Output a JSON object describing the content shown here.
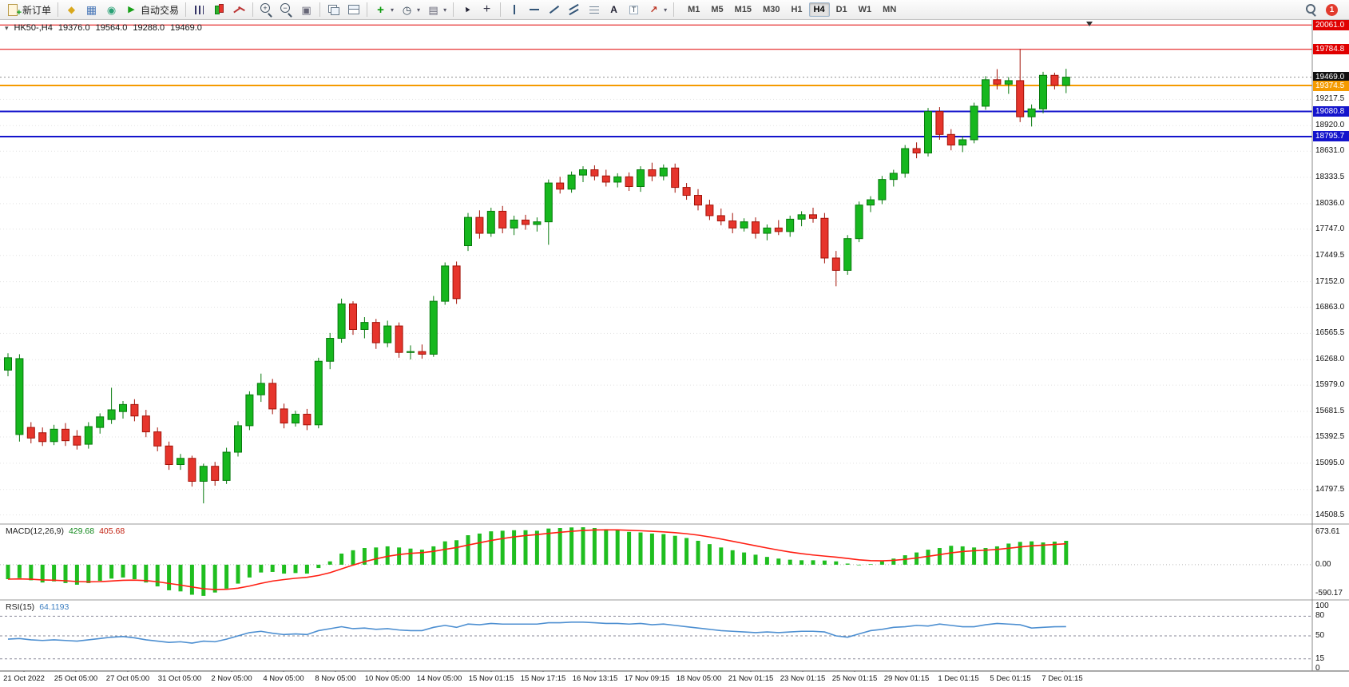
{
  "toolbar": {
    "buttons": [
      {
        "name": "new-order",
        "icon": "doc-plus",
        "label": "新订单"
      },
      {
        "divider": true
      },
      {
        "name": "market-watch",
        "icon": "gold-diamond"
      },
      {
        "name": "data-window",
        "icon": "blue-table"
      },
      {
        "name": "navigator",
        "icon": "green-globe"
      },
      {
        "name": "autotrading",
        "icon": "play",
        "label": "自动交易"
      },
      {
        "divider": true
      },
      {
        "name": "bar-chart",
        "icon": "bars"
      },
      {
        "name": "candlestick-chart",
        "icon": "candles"
      },
      {
        "name": "line-chart",
        "icon": "linechart"
      },
      {
        "divider": true
      },
      {
        "name": "zoom-in",
        "icon": "zoom-in"
      },
      {
        "name": "zoom-out",
        "icon": "zoom-out"
      },
      {
        "name": "tile-windows",
        "icon": "tiles"
      },
      {
        "divider": true
      },
      {
        "name": "cascade-windows",
        "icon": "cascade"
      },
      {
        "name": "arrange-windows",
        "icon": "cascade2"
      },
      {
        "divider": true
      },
      {
        "name": "indicators",
        "icon": "ind-plus",
        "dropdown": true
      },
      {
        "name": "periods",
        "icon": "clock",
        "dropdown": true
      },
      {
        "name": "templates",
        "icon": "template",
        "dropdown": true
      },
      {
        "divider": true
      },
      {
        "name": "cursor",
        "icon": "cursor"
      },
      {
        "name": "crosshair",
        "icon": "crosshair"
      },
      {
        "divider": true
      },
      {
        "name": "vertical-line",
        "icon": "vline"
      },
      {
        "name": "horizontal-line",
        "icon": "hline"
      },
      {
        "name": "trendline",
        "icon": "tline"
      },
      {
        "name": "equidistant-channel",
        "icon": "channel"
      },
      {
        "name": "fibonacci-retracement",
        "icon": "fibo"
      },
      {
        "name": "text",
        "icon": "text-a"
      },
      {
        "name": "text-label",
        "icon": "text-label"
      },
      {
        "name": "arrow-objects",
        "icon": "arrow",
        "dropdown": true
      },
      {
        "divider": true
      }
    ],
    "timeframes": [
      {
        "label": "M1",
        "active": false
      },
      {
        "label": "M5",
        "active": false
      },
      {
        "label": "M15",
        "active": false
      },
      {
        "label": "M30",
        "active": false
      },
      {
        "label": "H1",
        "active": false
      },
      {
        "label": "H4",
        "active": true
      },
      {
        "label": "D1",
        "active": false
      },
      {
        "label": "W1",
        "active": false
      },
      {
        "label": "MN",
        "active": false
      }
    ],
    "notification_count": "1"
  },
  "chart": {
    "title": {
      "symbol": "HK50-,H4",
      "open": "19376.0",
      "high": "19564.0",
      "low": "19288.0",
      "close": "19469.0"
    }
  },
  "indicators": {
    "macd": {
      "label": "MACD(12,26,9)",
      "value_main": "429.68",
      "value_signal": "405.68",
      "axis_max": "673.61",
      "axis_zero": "0.00",
      "axis_min": "-590.17"
    },
    "rsi": {
      "label": "RSI(15)",
      "value": "64.1193",
      "axis_labels": [
        "100",
        "80",
        "50",
        "15",
        "0"
      ]
    }
  },
  "chart_data": {
    "type": "candlestick",
    "symbol": "HK50-",
    "timeframe": "H4",
    "price_range": {
      "min": 14460,
      "max": 20090
    },
    "grid": true,
    "ohlc": [
      [
        16150,
        16340,
        16080,
        16290
      ],
      [
        15420,
        16330,
        15340,
        16280
      ],
      [
        15500,
        15560,
        15320,
        15380
      ],
      [
        15440,
        15500,
        15290,
        15340
      ],
      [
        15340,
        15530,
        15300,
        15480
      ],
      [
        15480,
        15550,
        15290,
        15350
      ],
      [
        15400,
        15470,
        15250,
        15300
      ],
      [
        15310,
        15560,
        15260,
        15510
      ],
      [
        15500,
        15660,
        15430,
        15620
      ],
      [
        15590,
        15950,
        15540,
        15700
      ],
      [
        15680,
        15800,
        15600,
        15760
      ],
      [
        15760,
        15820,
        15570,
        15630
      ],
      [
        15630,
        15700,
        15390,
        15450
      ],
      [
        15450,
        15500,
        15230,
        15290
      ],
      [
        15290,
        15340,
        15020,
        15080
      ],
      [
        15080,
        15200,
        15020,
        15150
      ],
      [
        15150,
        15180,
        14830,
        14890
      ],
      [
        14890,
        15090,
        14640,
        15060
      ],
      [
        15060,
        15110,
        14840,
        14900
      ],
      [
        14900,
        15270,
        14860,
        15220
      ],
      [
        15220,
        15570,
        15170,
        15520
      ],
      [
        15520,
        15910,
        15470,
        15870
      ],
      [
        15870,
        16110,
        15790,
        16000
      ],
      [
        16000,
        16050,
        15650,
        15710
      ],
      [
        15710,
        15770,
        15490,
        15550
      ],
      [
        15550,
        15690,
        15510,
        15650
      ],
      [
        15650,
        15710,
        15470,
        15530
      ],
      [
        15530,
        16290,
        15490,
        16250
      ],
      [
        16250,
        16570,
        16160,
        16510
      ],
      [
        16510,
        16960,
        16460,
        16900
      ],
      [
        16900,
        16930,
        16550,
        16610
      ],
      [
        16610,
        16750,
        16510,
        16690
      ],
      [
        16690,
        16730,
        16390,
        16460
      ],
      [
        16460,
        16710,
        16410,
        16650
      ],
      [
        16650,
        16690,
        16290,
        16350
      ],
      [
        16350,
        16430,
        16270,
        16360
      ],
      [
        16360,
        16440,
        16280,
        16330
      ],
      [
        16330,
        16990,
        16300,
        16930
      ],
      [
        16930,
        17370,
        16890,
        17330
      ],
      [
        17330,
        17380,
        16900,
        16960
      ],
      [
        17560,
        17930,
        17500,
        17880
      ],
      [
        17880,
        17960,
        17640,
        17700
      ],
      [
        17700,
        17990,
        17660,
        17950
      ],
      [
        17950,
        18010,
        17700,
        17760
      ],
      [
        17760,
        17900,
        17680,
        17850
      ],
      [
        17850,
        17910,
        17740,
        17800
      ],
      [
        17800,
        17880,
        17720,
        17830
      ],
      [
        17830,
        18310,
        17570,
        18270
      ],
      [
        18270,
        18340,
        18150,
        18200
      ],
      [
        18200,
        18400,
        18160,
        18360
      ],
      [
        18360,
        18460,
        18280,
        18420
      ],
      [
        18420,
        18470,
        18300,
        18350
      ],
      [
        18350,
        18420,
        18230,
        18280
      ],
      [
        18280,
        18380,
        18220,
        18340
      ],
      [
        18340,
        18390,
        18180,
        18230
      ],
      [
        18230,
        18460,
        18170,
        18420
      ],
      [
        18420,
        18500,
        18290,
        18350
      ],
      [
        18350,
        18480,
        18300,
        18440
      ],
      [
        18440,
        18490,
        18160,
        18220
      ],
      [
        18220,
        18270,
        18080,
        18130
      ],
      [
        18130,
        18200,
        17960,
        18020
      ],
      [
        18020,
        18080,
        17850,
        17900
      ],
      [
        17900,
        17980,
        17790,
        17840
      ],
      [
        17840,
        17930,
        17700,
        17760
      ],
      [
        17760,
        17870,
        17720,
        17830
      ],
      [
        17830,
        17880,
        17640,
        17700
      ],
      [
        17700,
        17800,
        17620,
        17760
      ],
      [
        17760,
        17850,
        17680,
        17720
      ],
      [
        17720,
        17900,
        17660,
        17860
      ],
      [
        17860,
        17950,
        17780,
        17910
      ],
      [
        17910,
        17990,
        17820,
        17870
      ],
      [
        17870,
        17930,
        17360,
        17420
      ],
      [
        17420,
        17500,
        17100,
        17280
      ],
      [
        17280,
        17680,
        17230,
        17640
      ],
      [
        17640,
        18060,
        17600,
        18020
      ],
      [
        18020,
        18120,
        17940,
        18080
      ],
      [
        18080,
        18350,
        18030,
        18310
      ],
      [
        18310,
        18420,
        18230,
        18380
      ],
      [
        18380,
        18700,
        18330,
        18660
      ],
      [
        18660,
        18730,
        18550,
        18610
      ],
      [
        18610,
        19120,
        18570,
        19080
      ],
      [
        19080,
        19130,
        18760,
        18820
      ],
      [
        18820,
        18880,
        18640,
        18700
      ],
      [
        18700,
        18800,
        18620,
        18760
      ],
      [
        18760,
        19180,
        18720,
        19140
      ],
      [
        19140,
        19480,
        19100,
        19440
      ],
      [
        19440,
        19560,
        19330,
        19390
      ],
      [
        19390,
        19470,
        19280,
        19430
      ],
      [
        19430,
        19790,
        18960,
        19020
      ],
      [
        19020,
        19160,
        18910,
        19110
      ],
      [
        19110,
        19530,
        19060,
        19490
      ],
      [
        19490,
        19520,
        19330,
        19376
      ],
      [
        19376,
        19564,
        19288,
        19469
      ]
    ],
    "x_labels": [
      "21 Oct 2022",
      "25 Oct 05:00",
      "27 Oct 05:00",
      "31 Oct 05:00",
      "2 Nov 05:00",
      "4 Nov 05:00",
      "8 Nov 05:00",
      "10 Nov 05:00",
      "14 Nov 05:00",
      "15 Nov 01:15",
      "15 Nov 17:15",
      "16 Nov 13:15",
      "17 Nov 09:15",
      "18 Nov 05:00",
      "21 Nov 01:15",
      "23 Nov 01:15",
      "25 Nov 01:15",
      "29 Nov 01:15",
      "1 Dec 01:15",
      "5 Dec 01:15",
      "7 Dec 01:15"
    ],
    "y_tick_labels": [
      "19217.5",
      "18920.0",
      "18631.0",
      "18333.5",
      "18036.0",
      "17747.0",
      "17449.5",
      "17152.0",
      "16863.0",
      "16565.5",
      "16268.0",
      "15979.0",
      "15681.5",
      "15392.5",
      "15095.0",
      "14797.5",
      "14508.5"
    ],
    "hlines": [
      {
        "label": "20061.0",
        "price": 20061.0,
        "color": "#E00000",
        "width": 1,
        "style": "solid",
        "role": "resistance-line"
      },
      {
        "label": "19784.8",
        "price": 19784.8,
        "color": "#E00000",
        "width": 1,
        "style": "solid",
        "role": "resistance-line"
      },
      {
        "label": "19469.0",
        "price": 19469.0,
        "color": "#111111",
        "line_color": "#909090",
        "width": 1,
        "style": "dotted",
        "role": "bid-price-line"
      },
      {
        "label": "19374.5",
        "price": 19374.5,
        "color": "#F59B00",
        "width": 2,
        "style": "solid",
        "role": "support-line"
      },
      {
        "label": "19080.8",
        "price": 19080.8,
        "color": "#1414CC",
        "width": 2,
        "style": "solid",
        "role": "support-line"
      },
      {
        "label": "18795.7",
        "price": 18795.7,
        "color": "#1414CC",
        "width": 2,
        "style": "solid",
        "role": "support-line"
      }
    ],
    "macd": {
      "params": "12,26,9",
      "range": {
        "max": 673.61,
        "min": -590.17
      },
      "values": [
        -260,
        -240,
        -280,
        -320,
        -300,
        -330,
        -360,
        -330,
        -290,
        -250,
        -230,
        -260,
        -320,
        -390,
        -460,
        -480,
        -540,
        -560,
        -500,
        -430,
        -340,
        -230,
        -140,
        -130,
        -160,
        -150,
        -160,
        -60,
        60,
        200,
        260,
        300,
        310,
        330,
        310,
        290,
        270,
        330,
        420,
        440,
        530,
        560,
        600,
        610,
        620,
        620,
        610,
        650,
        660,
        670,
        673,
        660,
        640,
        620,
        590,
        580,
        560,
        550,
        520,
        480,
        430,
        370,
        310,
        260,
        220,
        180,
        140,
        110,
        90,
        80,
        80,
        75,
        60,
        20,
        -10,
        10,
        60,
        110,
        170,
        220,
        270,
        300,
        340,
        330,
        310,
        300,
        330,
        380,
        410,
        420,
        400,
        415,
        429.68
      ]
    },
    "rsi": {
      "period": 15,
      "range": {
        "max": 100,
        "min": 0
      },
      "levels": [
        80,
        50,
        15
      ],
      "values": [
        45,
        46,
        44,
        43,
        44,
        43,
        42,
        44,
        46,
        48,
        49,
        47,
        44,
        42,
        40,
        41,
        39,
        42,
        41,
        45,
        50,
        55,
        57,
        54,
        52,
        53,
        52,
        58,
        61,
        64,
        61,
        62,
        60,
        61,
        59,
        58,
        58,
        63,
        66,
        63,
        68,
        67,
        69,
        68,
        68,
        68,
        68,
        70,
        70,
        71,
        71,
        70,
        69,
        69,
        68,
        69,
        67,
        68,
        66,
        64,
        62,
        60,
        58,
        57,
        56,
        55,
        56,
        55,
        56,
        57,
        57,
        56,
        50,
        48,
        53,
        58,
        60,
        63,
        64,
        66,
        65,
        68,
        66,
        64,
        64,
        67,
        69,
        68,
        67,
        62,
        63,
        64,
        64.1
      ]
    },
    "colors": {
      "up": "#16B71E",
      "up_border": "#077A0D",
      "down": "#E6352C",
      "down_border": "#A31208",
      "macd_histogram": "#1FBE1F",
      "macd_signal": "#FF1E12",
      "rsi_line": "#4D8FD1",
      "grid": "#E2E2E2"
    }
  }
}
